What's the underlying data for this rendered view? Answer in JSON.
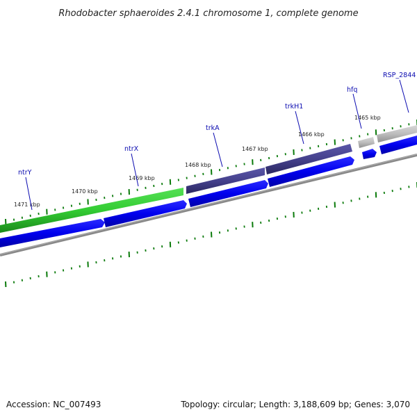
{
  "title": "Rhodobacter sphaeroides 2.4.1 chromosome 1, complete genome",
  "footer": {
    "accession": "Accession: NC_007493",
    "summary": "Topology: circular; Length: 3,188,609 bp; Genes: 3,070"
  },
  "scale_labels": [
    "1471 kbp",
    "1470 kbp",
    "1469 kbp",
    "1468 kbp",
    "1467 kbp",
    "1466 kbp",
    "1465 kbp"
  ],
  "genes": [
    {
      "label": "ntrY",
      "color": "#33cc33"
    },
    {
      "label": "ntrX",
      "color": "#0000ee"
    },
    {
      "label": "trkA",
      "color": "#3d3a82"
    },
    {
      "label": "trkH1",
      "color": "#3d3a82"
    },
    {
      "label": "hfq",
      "color": "#bbbbbb"
    },
    {
      "label": "RSP_2844",
      "color": "#bbbbbb"
    }
  ],
  "colors": {
    "tick": "#0a7a0a",
    "backbone": "#777777",
    "cds": "#0000ee",
    "gene_label": "#0a0ab0"
  }
}
